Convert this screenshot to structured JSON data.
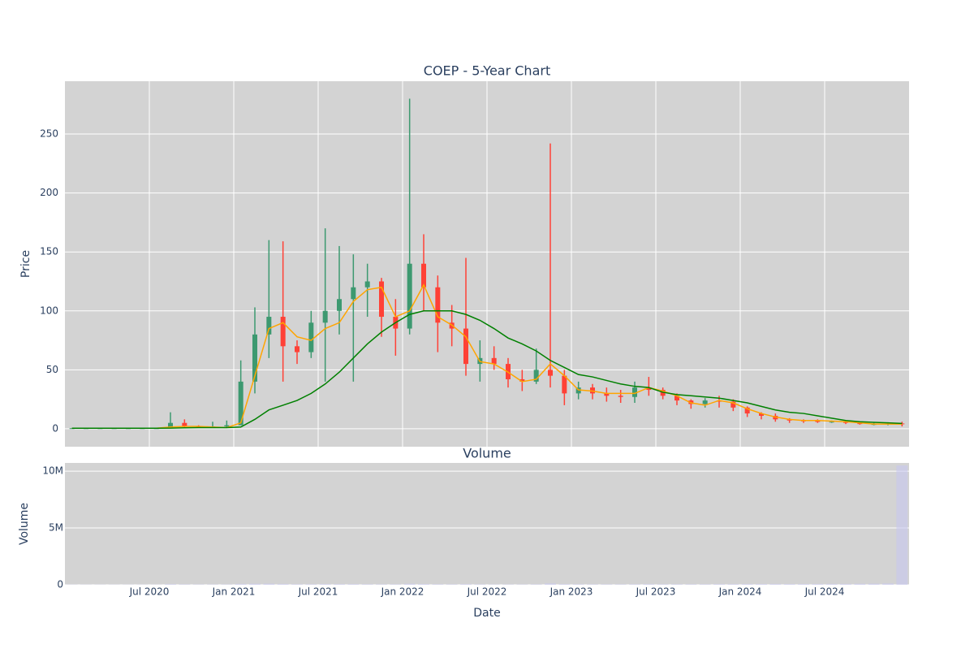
{
  "chart_data": [
    {
      "type": "candlestick",
      "title": "COEP - 5-Year Chart",
      "ylabel": "Price",
      "x": [
        "2020-01",
        "2020-02",
        "2020-03",
        "2020-04",
        "2020-05",
        "2020-06",
        "2020-07",
        "2020-08",
        "2020-09",
        "2020-10",
        "2020-11",
        "2020-12",
        "2021-01",
        "2021-02",
        "2021-03",
        "2021-04",
        "2021-05",
        "2021-06",
        "2021-07",
        "2021-08",
        "2021-09",
        "2021-10",
        "2021-11",
        "2021-12",
        "2022-01",
        "2022-02",
        "2022-03",
        "2022-04",
        "2022-05",
        "2022-06",
        "2022-07",
        "2022-08",
        "2022-09",
        "2022-10",
        "2022-11",
        "2022-12",
        "2023-01",
        "2023-02",
        "2023-03",
        "2023-04",
        "2023-05",
        "2023-06",
        "2023-07",
        "2023-08",
        "2023-09",
        "2023-10",
        "2023-11",
        "2023-12",
        "2024-01",
        "2024-02",
        "2024-03",
        "2024-04",
        "2024-05",
        "2024-06",
        "2024-07",
        "2024-08",
        "2024-09",
        "2024-10",
        "2024-11",
        "2024-12"
      ],
      "open": [
        0.5,
        0.5,
        0.5,
        0.5,
        0.5,
        0.5,
        0.5,
        0.5,
        5,
        2,
        1.5,
        2,
        3,
        40,
        80,
        95,
        70,
        65,
        90,
        100,
        110,
        120,
        125,
        95,
        85,
        140,
        120,
        90,
        85,
        55,
        60,
        55,
        42,
        40,
        50,
        45,
        30,
        35,
        30,
        28,
        27,
        35,
        33,
        28,
        24,
        21,
        24,
        23,
        18,
        13,
        11,
        8,
        7,
        6.5,
        6,
        6,
        5,
        4,
        4,
        4.5
      ],
      "high": [
        0.6,
        0.6,
        0.6,
        0.6,
        0.6,
        0.6,
        0.6,
        14,
        8,
        3,
        6,
        7,
        58,
        103,
        160,
        159,
        75,
        100,
        170,
        155,
        148,
        140,
        128,
        110,
        280,
        165,
        130,
        105,
        145,
        75,
        70,
        60,
        50,
        68,
        242,
        50,
        40,
        38,
        35,
        33,
        40,
        44,
        35,
        30,
        25,
        26,
        28,
        25,
        19,
        14,
        13,
        9,
        8,
        8,
        7,
        7,
        5.5,
        5,
        5.5,
        6
      ],
      "low": [
        0.4,
        0.4,
        0.4,
        0.4,
        0.4,
        0.4,
        0.4,
        0.5,
        1,
        1,
        1,
        1,
        3,
        30,
        60,
        40,
        55,
        60,
        40,
        80,
        40,
        95,
        78,
        62,
        80,
        100,
        65,
        70,
        45,
        40,
        50,
        35,
        32,
        38,
        35,
        20,
        25,
        25,
        23,
        22,
        22,
        28,
        25,
        20,
        17,
        18,
        18,
        15,
        10,
        8,
        6,
        5,
        5,
        5,
        5,
        4,
        3.5,
        3,
        3,
        2
      ],
      "close": [
        0.5,
        0.5,
        0.5,
        0.5,
        0.5,
        0.5,
        0.5,
        5,
        2,
        1.5,
        2,
        3,
        40,
        80,
        95,
        70,
        65,
        90,
        100,
        110,
        120,
        125,
        95,
        85,
        140,
        120,
        90,
        85,
        55,
        60,
        55,
        42,
        40,
        50,
        45,
        30,
        35,
        30,
        28,
        27,
        35,
        33,
        28,
        24,
        21,
        24,
        23,
        18,
        13,
        11,
        8,
        7,
        6.5,
        6,
        6,
        5,
        4,
        4,
        4.5,
        4
      ],
      "increasing_color": "#3d9970",
      "decreasing_color": "#ff4136",
      "series": [
        {
          "color": "#ffa500",
          "values": [
            0.5,
            0.5,
            0.5,
            0.5,
            0.5,
            0.5,
            0.5,
            1.5,
            2,
            2,
            1.5,
            1,
            5,
            45,
            85,
            90,
            78,
            75,
            85,
            90,
            108,
            118,
            120,
            95,
            100,
            122,
            95,
            88,
            78,
            57,
            55,
            48,
            40,
            42,
            55,
            45,
            33,
            32,
            30,
            30,
            30,
            35,
            32,
            28,
            22,
            20,
            24,
            22,
            17,
            13,
            10,
            8,
            7,
            7,
            6.5,
            6,
            5,
            4,
            4,
            4
          ]
        },
        {
          "color": "#008000",
          "values": [
            0.5,
            0.5,
            0.5,
            0.5,
            0.5,
            0.5,
            0.5,
            0.6,
            0.8,
            1,
            1,
            1,
            1.5,
            8,
            16,
            20,
            24,
            30,
            38,
            48,
            60,
            72,
            82,
            90,
            97,
            100,
            100,
            100,
            97,
            92,
            85,
            77,
            72,
            66,
            58,
            52,
            46,
            44,
            41,
            38,
            36,
            35,
            31,
            29,
            28,
            27,
            26,
            24,
            22,
            19,
            16,
            14,
            13,
            11,
            9,
            7,
            6,
            5.5,
            5,
            4.5
          ]
        }
      ],
      "ylim": [
        -15.2,
        294.8
      ],
      "yticks": [
        0,
        50,
        100,
        150,
        200,
        250
      ],
      "grid": true
    },
    {
      "type": "bar",
      "title": "Volume",
      "ylabel": "Volume",
      "xlabel": "Date",
      "color": "#c8c8f0",
      "x": [
        "2020-01",
        "2020-02",
        "2020-03",
        "2020-04",
        "2020-05",
        "2020-06",
        "2020-07",
        "2020-08",
        "2020-09",
        "2020-10",
        "2020-11",
        "2020-12",
        "2021-01",
        "2021-02",
        "2021-03",
        "2021-04",
        "2021-05",
        "2021-06",
        "2021-07",
        "2021-08",
        "2021-09",
        "2021-10",
        "2021-11",
        "2021-12",
        "2022-01",
        "2022-02",
        "2022-03",
        "2022-04",
        "2022-05",
        "2022-06",
        "2022-07",
        "2022-08",
        "2022-09",
        "2022-10",
        "2022-11",
        "2022-12",
        "2023-01",
        "2023-02",
        "2023-03",
        "2023-04",
        "2023-05",
        "2023-06",
        "2023-07",
        "2023-08",
        "2023-09",
        "2023-10",
        "2023-11",
        "2023-12",
        "2024-01",
        "2024-02",
        "2024-03",
        "2024-04",
        "2024-05",
        "2024-06",
        "2024-07",
        "2024-08",
        "2024-09",
        "2024-10",
        "2024-11",
        "2024-12"
      ],
      "values": [
        20000,
        20000,
        20000,
        20000,
        20000,
        20000,
        20000,
        60000,
        40000,
        30000,
        30000,
        30000,
        80000,
        90000,
        100000,
        80000,
        50000,
        50000,
        70000,
        60000,
        60000,
        50000,
        40000,
        40000,
        90000,
        70000,
        50000,
        40000,
        60000,
        40000,
        30000,
        30000,
        30000,
        40000,
        120000,
        60000,
        50000,
        40000,
        40000,
        40000,
        50000,
        60000,
        50000,
        50000,
        50000,
        50000,
        60000,
        60000,
        70000,
        70000,
        80000,
        70000,
        70000,
        70000,
        80000,
        80000,
        90000,
        100000,
        120000,
        10500000
      ],
      "xlim": [
        "2020-01",
        "2025-01"
      ],
      "xticks": [
        {
          "value": "2020-07",
          "label": "Jul 2020"
        },
        {
          "value": "2021-01",
          "label": "Jan 2021"
        },
        {
          "value": "2021-07",
          "label": "Jul 2021"
        },
        {
          "value": "2022-01",
          "label": "Jan 2022"
        },
        {
          "value": "2022-07",
          "label": "Jul 2022"
        },
        {
          "value": "2023-01",
          "label": "Jan 2023"
        },
        {
          "value": "2023-07",
          "label": "Jul 2023"
        },
        {
          "value": "2024-01",
          "label": "Jan 2024"
        },
        {
          "value": "2024-07",
          "label": "Jul 2024"
        }
      ],
      "ylim": [
        0,
        10720000
      ],
      "yticks": [
        0,
        {
          "value": 5000000,
          "label": "5M"
        },
        {
          "value": 10000000,
          "label": "10M"
        }
      ],
      "grid": true
    }
  ]
}
